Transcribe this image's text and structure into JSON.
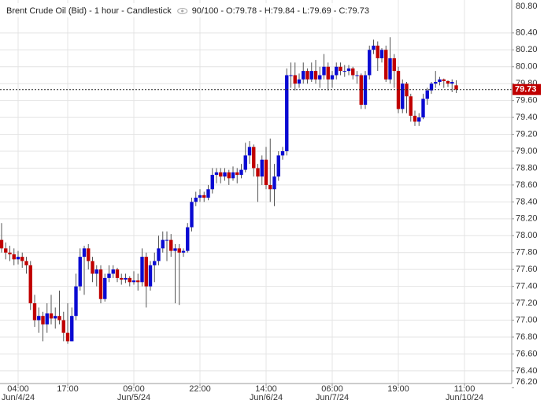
{
  "chart_data": {
    "type": "candlestick",
    "title": "Brent Crude Oil (Bid) - 1 hour - Candlestick",
    "info": "90/100",
    "separator": "-",
    "ohlc_labels": [
      "O:",
      "H:",
      "L:",
      "C:"
    ],
    "up_color": "#0a0ad2",
    "down_color": "#c00000",
    "grid": true,
    "axis_side": "right",
    "categories": [
      null,
      null,
      null,
      null,
      "04:00",
      null,
      null,
      null,
      null,
      null,
      null,
      null,
      null,
      null,
      null,
      null,
      "17:00",
      null,
      null,
      null,
      null,
      null,
      null,
      null,
      null,
      null,
      null,
      null,
      null,
      null,
      null,
      null,
      "09:00",
      null,
      null,
      null,
      null,
      null,
      null,
      null,
      null,
      null,
      null,
      null,
      null,
      null,
      null,
      null,
      "22:00",
      null,
      null,
      null,
      null,
      null,
      null,
      null,
      null,
      null,
      null,
      null,
      null,
      null,
      null,
      null,
      "14:00",
      null,
      null,
      null,
      null,
      null,
      null,
      null,
      null,
      null,
      null,
      null,
      null,
      null,
      null,
      null,
      "06:00",
      null,
      null,
      null,
      null,
      null,
      null,
      null,
      null,
      null,
      null,
      null,
      null,
      null,
      null,
      null,
      "19:00",
      null,
      null,
      null,
      null,
      null,
      null,
      null,
      null,
      null,
      null,
      null,
      null,
      null,
      null,
      null,
      "11:00"
    ],
    "category_dates": [
      null,
      null,
      null,
      null,
      "Jun/4/24",
      null,
      null,
      null,
      null,
      null,
      null,
      null,
      null,
      null,
      null,
      null,
      null,
      null,
      null,
      null,
      null,
      null,
      null,
      null,
      null,
      null,
      null,
      null,
      null,
      null,
      null,
      null,
      "Jun/5/24",
      null,
      null,
      null,
      null,
      null,
      null,
      null,
      null,
      null,
      null,
      null,
      null,
      null,
      null,
      null,
      null,
      null,
      null,
      null,
      null,
      null,
      null,
      null,
      null,
      null,
      null,
      null,
      null,
      null,
      null,
      null,
      "Jun/6/24",
      null,
      null,
      null,
      null,
      null,
      null,
      null,
      null,
      null,
      null,
      null,
      null,
      null,
      null,
      null,
      "Jun/7/24",
      null,
      null,
      null,
      null,
      null,
      null,
      null,
      null,
      null,
      null,
      null,
      null,
      null,
      null,
      null,
      null,
      null,
      null,
      null,
      null,
      null,
      null,
      null,
      null,
      null,
      null,
      null,
      null,
      null,
      null,
      null,
      "Jun/10/24"
    ],
    "open": [
      77.95,
      77.85,
      77.8,
      77.78,
      77.72,
      77.75,
      77.7,
      77.65,
      77.2,
      77.0,
      77.05,
      76.95,
      77.08,
      77.02,
      77.05,
      77.0,
      76.85,
      76.75,
      77.05,
      77.4,
      77.75,
      77.85,
      77.7,
      77.55,
      77.6,
      77.25,
      77.5,
      77.55,
      77.6,
      77.5,
      77.48,
      77.5,
      77.45,
      77.47,
      77.45,
      77.75,
      77.4,
      77.65,
      77.7,
      77.85,
      77.95,
      77.95,
      77.82,
      77.85,
      77.8,
      77.82,
      78.1,
      78.4,
      78.45,
      78.48,
      78.45,
      78.55,
      78.72,
      78.75,
      78.7,
      78.75,
      78.68,
      78.75,
      78.72,
      78.78,
      78.95,
      79.05,
      78.8,
      78.7,
      78.9,
      78.6,
      78.55,
      78.7,
      78.95,
      79.0,
      79.9,
      79.9,
      79.8,
      79.85,
      79.95,
      79.85,
      79.95,
      79.85,
      79.9,
      80.0,
      79.85,
      79.9,
      80.0,
      79.95,
      79.95,
      79.98,
      79.9,
      79.9,
      79.55,
      79.9,
      80.2,
      80.25,
      80.1,
      80.2,
      79.85,
      80.1,
      79.95,
      79.5,
      79.8,
      79.65,
      79.42,
      79.35,
      79.4,
      79.62,
      79.72,
      79.8,
      79.82,
      79.85,
      79.83,
      79.8,
      79.78,
      null,
      null
    ],
    "high": [
      78.15,
      77.92,
      77.88,
      77.85,
      77.82,
      77.8,
      77.75,
      77.7,
      77.3,
      77.15,
      77.1,
      77.2,
      77.3,
      77.15,
      77.35,
      77.1,
      77.2,
      77.15,
      77.55,
      77.85,
      77.88,
      77.9,
      77.75,
      77.65,
      77.65,
      77.55,
      77.65,
      77.65,
      77.62,
      77.55,
      77.55,
      77.52,
      77.58,
      77.55,
      77.85,
      77.8,
      77.7,
      77.8,
      78.0,
      78.05,
      78.05,
      78.02,
      77.9,
      77.9,
      77.85,
      78.15,
      78.45,
      78.52,
      78.55,
      78.52,
      78.6,
      78.8,
      78.8,
      78.8,
      78.8,
      78.78,
      78.82,
      78.8,
      78.85,
      79.1,
      79.12,
      79.08,
      78.85,
      78.95,
      79.05,
      79.15,
      78.85,
      79.0,
      79.05,
      79.98,
      80.05,
      80.05,
      79.92,
      80.05,
      79.98,
      80.05,
      80.08,
      80.0,
      80.15,
      80.05,
      79.95,
      80.05,
      80.05,
      80.02,
      80.02,
      80.0,
      79.95,
      79.92,
      79.95,
      80.25,
      80.32,
      80.3,
      80.22,
      80.25,
      80.35,
      80.15,
      80.0,
      79.85,
      79.82,
      79.68,
      79.48,
      79.45,
      79.68,
      79.75,
      79.82,
      79.95,
      79.88,
      79.86,
      79.84,
      79.85,
      79.84,
      null,
      null
    ],
    "low": [
      77.8,
      77.72,
      77.7,
      77.65,
      77.66,
      77.62,
      77.55,
      77.12,
      76.92,
      76.85,
      76.75,
      76.85,
      76.95,
      76.9,
      76.95,
      76.75,
      76.72,
      76.75,
      77.0,
      77.35,
      77.3,
      77.6,
      77.45,
      77.4,
      77.2,
      77.22,
      77.45,
      77.5,
      77.45,
      77.42,
      77.44,
      77.4,
      77.42,
      77.35,
      77.4,
      77.15,
      77.35,
      77.45,
      77.65,
      77.8,
      77.7,
      77.75,
      77.2,
      77.18,
      77.75,
      77.8,
      78.05,
      78.35,
      78.4,
      78.4,
      78.42,
      78.5,
      78.62,
      78.62,
      78.65,
      78.6,
      78.65,
      78.62,
      78.68,
      78.75,
      78.85,
      78.7,
      78.4,
      78.6,
      78.55,
      78.4,
      78.35,
      78.65,
      78.9,
      78.95,
      79.75,
      79.72,
      79.75,
      79.8,
      79.8,
      79.82,
      79.8,
      79.75,
      79.85,
      79.72,
      79.75,
      79.85,
      79.9,
      79.88,
      79.9,
      79.85,
      79.8,
      79.5,
      79.5,
      79.85,
      80.15,
      79.95,
      80.05,
      79.82,
      79.8,
      79.75,
      79.45,
      79.45,
      79.45,
      79.35,
      79.3,
      79.3,
      79.38,
      79.55,
      79.68,
      79.75,
      79.78,
      79.75,
      79.76,
      79.7,
      79.69,
      null,
      null
    ],
    "close": [
      77.85,
      77.8,
      77.78,
      77.72,
      77.75,
      77.7,
      77.65,
      77.2,
      77.0,
      77.05,
      76.95,
      77.08,
      77.02,
      77.05,
      77.0,
      76.85,
      76.75,
      77.05,
      77.4,
      77.75,
      77.85,
      77.7,
      77.55,
      77.6,
      77.25,
      77.5,
      77.55,
      77.6,
      77.5,
      77.48,
      77.5,
      77.45,
      77.47,
      77.45,
      77.75,
      77.4,
      77.65,
      77.7,
      77.85,
      77.95,
      77.95,
      77.82,
      77.85,
      77.8,
      77.82,
      78.1,
      78.4,
      78.45,
      78.48,
      78.45,
      78.55,
      78.72,
      78.75,
      78.7,
      78.75,
      78.68,
      78.75,
      78.72,
      78.78,
      78.95,
      79.05,
      78.8,
      78.7,
      78.9,
      78.6,
      78.55,
      78.7,
      78.95,
      79.0,
      79.9,
      79.9,
      79.8,
      79.85,
      79.95,
      79.85,
      79.95,
      79.85,
      79.9,
      80.0,
      79.85,
      79.9,
      80.0,
      79.95,
      79.95,
      79.98,
      79.9,
      79.9,
      79.55,
      79.9,
      80.2,
      80.25,
      80.1,
      80.2,
      79.85,
      80.1,
      79.95,
      79.5,
      79.8,
      79.65,
      79.42,
      79.35,
      79.4,
      79.62,
      79.72,
      79.8,
      79.82,
      79.85,
      79.83,
      79.8,
      79.82,
      79.73,
      null,
      null
    ],
    "ylim": [
      76.25,
      80.79
    ],
    "yticks": [
      {
        "value": 76.2,
        "label": "76.20"
      },
      {
        "value": 76.4,
        "label": "76.40"
      },
      {
        "value": 76.6,
        "label": "76.60"
      },
      {
        "value": 76.8,
        "label": "76.80"
      },
      {
        "value": 77,
        "label": "77.00"
      },
      {
        "value": 77.2,
        "label": "77.20"
      },
      {
        "value": 77.4,
        "label": "77.40"
      },
      {
        "value": 77.6,
        "label": "77.60"
      },
      {
        "value": 77.8,
        "label": "77.80"
      },
      {
        "value": 78,
        "label": "78.00"
      },
      {
        "value": 78.2,
        "label": "78.20"
      },
      {
        "value": 78.4,
        "label": "78.40"
      },
      {
        "value": 78.6,
        "label": "78.60"
      },
      {
        "value": 78.8,
        "label": "78.80"
      },
      {
        "value": 79,
        "label": "79.00"
      },
      {
        "value": 79.2,
        "label": "79.20"
      },
      {
        "value": 79.4,
        "label": "79.40"
      },
      {
        "value": 79.6,
        "label": "79.60"
      },
      {
        "value": 79.8,
        "label": "79.80"
      },
      {
        "value": 80,
        "label": "80.00"
      },
      {
        "value": 80.2,
        "label": "80.20"
      },
      {
        "value": 80.4,
        "label": "80.40"
      },
      {
        "value": 80.8,
        "label": "80.80"
      }
    ]
  }
}
